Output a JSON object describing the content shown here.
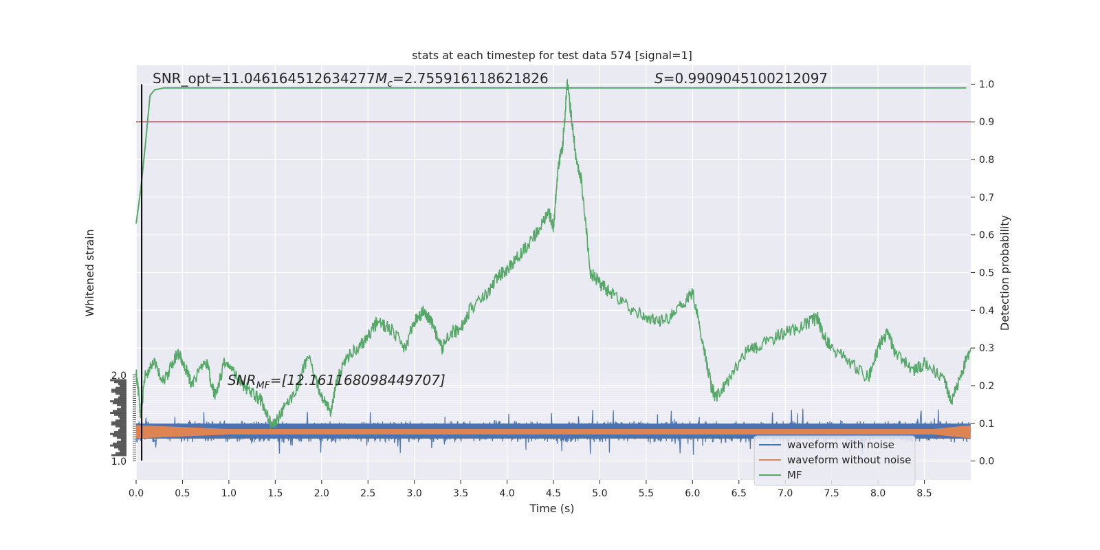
{
  "chart_data": {
    "type": "line",
    "title": "stats at each timestep for test data 574 [signal=1]",
    "xlabel": "Time (s)",
    "ylabel_left": "Whitened strain",
    "ylabel_right": "Detection probability",
    "xlim": [
      0.0,
      9.0
    ],
    "ylim_right": [
      -0.05,
      1.05
    ],
    "x_ticks": [
      "0.0",
      "0.5",
      "1.0",
      "1.5",
      "2.0",
      "2.5",
      "3.0",
      "3.5",
      "4.0",
      "4.5",
      "5.0",
      "5.5",
      "6.0",
      "6.5",
      "7.0",
      "7.5",
      "8.0",
      "8.5"
    ],
    "y_ticks_right": [
      "0.0",
      "0.1",
      "0.2",
      "0.3",
      "0.4",
      "0.5",
      "0.6",
      "0.7",
      "0.8",
      "0.9",
      "1.0"
    ],
    "left_tick_labels_visible": [
      "2.0",
      "1.0"
    ],
    "grid": true,
    "legend_position": "lower-right",
    "threshold": 0.9,
    "marker_line_x": 0.06,
    "annotations": {
      "snr_opt": "SNR_opt=11.046164512634277",
      "mc_symbol": "M",
      "mc_sub": "c",
      "mc_value": "=2.755916118621826",
      "s_symbol": "S",
      "s_value": "=0.9909045100212097",
      "snr_mf_symbol": "SNR",
      "snr_mf_sub": "MF",
      "snr_mf_value": "=[12.161168098449707]"
    },
    "series": [
      {
        "name": "waveform with noise",
        "color": "#4c72b0"
      },
      {
        "name": "waveform without noise",
        "color": "#dd8452"
      },
      {
        "name": "MF",
        "color": "#55a868"
      }
    ],
    "mf_line": {
      "x": [
        0.0,
        0.05,
        0.1,
        0.15,
        0.2,
        0.3,
        0.5,
        1.0,
        2.0,
        3.0,
        4.0,
        5.0,
        6.0,
        7.0,
        8.0,
        9.0
      ],
      "y": [
        0.63,
        0.72,
        0.84,
        0.97,
        0.985,
        0.99,
        0.99,
        0.99,
        0.99,
        0.99,
        0.99,
        0.99,
        0.99,
        0.99,
        0.99,
        0.99
      ]
    },
    "detection_probability": {
      "x": [
        0.0,
        0.05,
        0.1,
        0.2,
        0.3,
        0.45,
        0.5,
        0.6,
        0.75,
        0.85,
        0.95,
        1.1,
        1.2,
        1.35,
        1.45,
        1.5,
        1.6,
        1.75,
        1.85,
        2.0,
        2.1,
        2.15,
        2.25,
        2.4,
        2.5,
        2.6,
        2.75,
        2.9,
        3.0,
        3.1,
        3.2,
        3.3,
        3.4,
        3.5,
        3.6,
        3.8,
        3.9,
        4.0,
        4.15,
        4.3,
        4.45,
        4.5,
        4.55,
        4.6,
        4.65,
        4.7,
        4.75,
        4.8,
        4.9,
        5.0,
        5.1,
        5.3,
        5.5,
        5.6,
        5.75,
        5.9,
        6.0,
        6.1,
        6.2,
        6.25,
        6.4,
        6.6,
        6.7,
        6.9,
        7.0,
        7.2,
        7.35,
        7.4,
        7.5,
        7.7,
        7.9,
        8.0,
        8.1,
        8.2,
        8.4,
        8.5,
        8.7,
        8.8,
        8.9,
        9.0
      ],
      "y": [
        0.24,
        0.12,
        0.23,
        0.26,
        0.21,
        0.29,
        0.27,
        0.2,
        0.27,
        0.17,
        0.26,
        0.22,
        0.19,
        0.16,
        0.1,
        0.1,
        0.14,
        0.2,
        0.28,
        0.17,
        0.13,
        0.2,
        0.27,
        0.3,
        0.33,
        0.37,
        0.35,
        0.3,
        0.37,
        0.4,
        0.36,
        0.3,
        0.34,
        0.35,
        0.4,
        0.45,
        0.49,
        0.51,
        0.55,
        0.6,
        0.66,
        0.62,
        0.78,
        0.84,
        1.0,
        0.9,
        0.79,
        0.75,
        0.5,
        0.47,
        0.45,
        0.41,
        0.38,
        0.37,
        0.38,
        0.42,
        0.45,
        0.33,
        0.2,
        0.17,
        0.22,
        0.3,
        0.3,
        0.33,
        0.34,
        0.36,
        0.38,
        0.34,
        0.3,
        0.26,
        0.22,
        0.3,
        0.34,
        0.28,
        0.24,
        0.26,
        0.22,
        0.16,
        0.23,
        0.3
      ]
    },
    "whitened_strain": {
      "noise_amplitude": 2.0,
      "signal_envelope": {
        "x": [
          0.0,
          1.0,
          8.6,
          9.0
        ],
        "amplitude": [
          0.6,
          0.25,
          0.25,
          0.6
        ]
      }
    }
  }
}
